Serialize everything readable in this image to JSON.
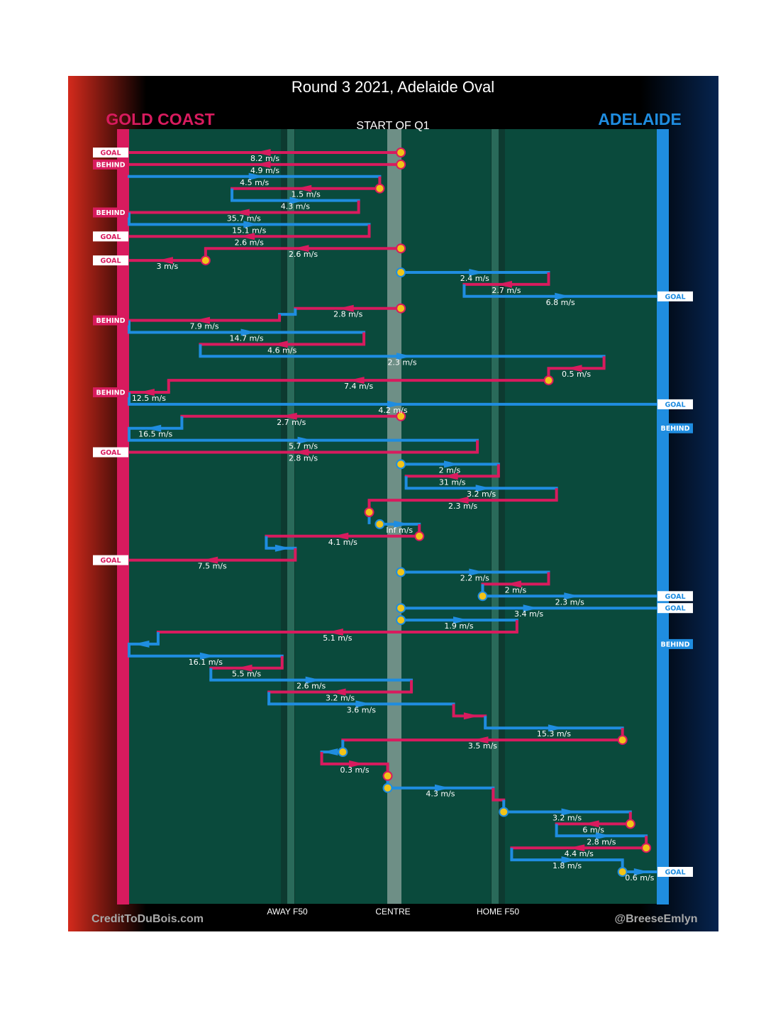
{
  "chart_data": {
    "type": "chain-flow",
    "title": "Round 3 2021, Adelaide Oval",
    "subtitle": "START OF Q1",
    "teams": {
      "left": {
        "name": "GOLD COAST",
        "color": "#d81b5e"
      },
      "right": {
        "name": "ADELAIDE",
        "color": "#1f8de0"
      }
    },
    "zone_labels": [
      "AWAY F50",
      "CENTRE",
      "HOME F50"
    ],
    "credits": {
      "left": "CreditToDuBois.com",
      "right": "@BreeseEmlyn"
    },
    "outcome_labels": {
      "goal": "GOAL",
      "behind": "BEHIND"
    },
    "field_units": "x = ground position (0 = Gold Coast goal line, 100 = Adelaide goal line, 50 = centre); row = chain segment order",
    "chains": [
      {
        "outcome": "goal",
        "segments": [
          {
            "team": "GC",
            "speed": "8.2 m/s",
            "row": 1,
            "x1": 51.5,
            "x2": 0,
            "end": "GOAL",
            "start_marker": true
          }
        ]
      },
      {
        "outcome": "behind",
        "segments": [
          {
            "team": "GC",
            "speed": "4.9 m/s",
            "row": 2,
            "x1": 51.5,
            "x2": 0,
            "end": "BEHIND",
            "start_marker": true
          }
        ]
      },
      {
        "outcome": "goal",
        "segments": [
          {
            "team": "ADL",
            "speed": "4.5 m/s",
            "row": 3,
            "x1": 0,
            "x2": 47.5
          },
          {
            "team": "GC",
            "speed": "1.5 m/s",
            "row": 4,
            "x1": 47.5,
            "x2": 19.5,
            "start_marker": true
          },
          {
            "team": "ADL",
            "speed": "4.3 m/s",
            "row": 5,
            "x1": 19.5,
            "x2": 43.5
          },
          {
            "team": "GC",
            "speed": "35.7 m/s",
            "row": 6,
            "x1": 43.5,
            "x2": 0,
            "end": "BEHIND"
          },
          {
            "team": "ADL",
            "speed": "15.1 m/s",
            "row": 7,
            "x1": 0,
            "x2": 45.5
          },
          {
            "team": "GC",
            "speed": "2.6 m/s",
            "row": 8,
            "x1": 45.5,
            "x2": 0,
            "end": "GOAL"
          }
        ]
      },
      {
        "outcome": "goal",
        "segments": [
          {
            "team": "GC",
            "speed": "2.6 m/s",
            "row": 9,
            "x1": 51.5,
            "x2": 14.5,
            "start_marker": true
          },
          {
            "team": "GC",
            "speed": "3 m/s",
            "row": 10,
            "x1": 14.5,
            "x2": 0,
            "end": "GOAL",
            "start_marker": true
          }
        ]
      },
      {
        "outcome": "goal",
        "segments": [
          {
            "team": "ADL",
            "speed": "2.4 m/s",
            "row": 11,
            "x1": 51.5,
            "x2": 79.5,
            "start_marker": true
          },
          {
            "team": "GC",
            "speed": "2.7 m/s",
            "row": 12,
            "x1": 79.5,
            "x2": 63.5
          },
          {
            "team": "ADL",
            "speed": "6.8 m/s",
            "row": 13,
            "x1": 63.5,
            "x2": 100,
            "end": "GOAL"
          }
        ]
      },
      {
        "outcome": "behind",
        "segments": [
          {
            "team": "GC",
            "speed": "2.8 m/s",
            "row": 14,
            "x1": 51.5,
            "x2": 31.5,
            "start_marker": true
          },
          {
            "team": "ADL",
            "speed": "",
            "row": 14.5,
            "x1": 31.5,
            "x2": 28.5
          },
          {
            "team": "GC",
            "speed": "7.9 m/s",
            "row": 15,
            "x1": 28.5,
            "x2": 0,
            "end": "BEHIND"
          },
          {
            "team": "ADL",
            "speed": "14.7 m/s",
            "row": 16,
            "x1": 0,
            "x2": 44.5
          },
          {
            "team": "GC",
            "speed": "4.6 m/s",
            "row": 17,
            "x1": 44.5,
            "x2": 13.5
          },
          {
            "team": "ADL",
            "speed": "2.3 m/s",
            "row": 18,
            "x1": 13.5,
            "x2": 90
          },
          {
            "team": "GC",
            "speed": "0.5 m/s",
            "row": 19,
            "x1": 90,
            "x2": 79.5
          },
          {
            "team": "GC",
            "speed": "7.4 m/s",
            "row": 20,
            "x1": 79.5,
            "x2": 7.5,
            "start_marker": true
          },
          {
            "team": "GC",
            "speed": "12.5 m/s",
            "row": 21,
            "x1": 7.5,
            "x2": 0,
            "end": "BEHIND"
          },
          {
            "team": "ADL",
            "speed": "4.2 m/s",
            "row": 22,
            "x1": 0,
            "x2": 100,
            "end": "GOAL"
          }
        ]
      },
      {
        "outcome": "goal",
        "segments": [
          {
            "team": "GC",
            "speed": "2.7 m/s",
            "row": 23,
            "x1": 51.5,
            "x2": 10,
            "start_marker": true
          },
          {
            "team": "ADL",
            "speed": "16.5 m/s",
            "row": 24,
            "x1": 10,
            "x2": 0,
            "end": "BEHIND"
          },
          {
            "team": "ADL",
            "speed": "5.7 m/s",
            "row": 25,
            "x1": 0,
            "x2": 66
          },
          {
            "team": "GC",
            "speed": "2.8 m/s",
            "row": 26,
            "x1": 66,
            "x2": 0,
            "end": "GOAL"
          }
        ]
      },
      {
        "outcome": "turnover",
        "segments": [
          {
            "team": "ADL",
            "speed": "2 m/s",
            "row": 27,
            "x1": 51.5,
            "x2": 70,
            "start_marker": true
          },
          {
            "team": "GC",
            "speed": "31 m/s",
            "row": 28,
            "x1": 70,
            "x2": 52.5
          },
          {
            "team": "ADL",
            "speed": "3.2 m/s",
            "row": 29,
            "x1": 52.5,
            "x2": 81
          },
          {
            "team": "GC",
            "speed": "2.3 m/s",
            "row": 30,
            "x1": 81,
            "x2": 45.5
          },
          {
            "team": "GC",
            "speed": "",
            "row": 31,
            "x1": 45.5,
            "x2": 45.5,
            "start_marker": true
          },
          {
            "team": "ADL",
            "speed": "Inf m/s",
            "row": 32,
            "x1": 47.5,
            "x2": 55,
            "start_marker": true
          },
          {
            "team": "GC",
            "speed": "4.1 m/s",
            "row": 33,
            "x1": 55,
            "x2": 26,
            "start_marker": true
          },
          {
            "team": "ADL",
            "speed": "",
            "row": 34,
            "x1": 26,
            "x2": 31.5
          },
          {
            "team": "GC",
            "speed": "7.5 m/s",
            "row": 35,
            "x1": 31.5,
            "x2": 0,
            "end": "GOAL"
          }
        ]
      },
      {
        "outcome": "goal",
        "segments": [
          {
            "team": "ADL",
            "speed": "2.2 m/s",
            "row": 36,
            "x1": 51.5,
            "x2": 79.5,
            "start_marker": true
          },
          {
            "team": "GC",
            "speed": "2 m/s",
            "row": 37,
            "x1": 79.5,
            "x2": 67,
            "start_marker": false
          },
          {
            "team": "ADL",
            "speed": "2.3 m/s",
            "row": 38,
            "x1": 67,
            "x2": 100,
            "end": "GOAL",
            "start_marker": true
          }
        ]
      },
      {
        "outcome": "goal",
        "segments": [
          {
            "team": "ADL",
            "speed": "3.4 m/s",
            "row": 39,
            "x1": 51.5,
            "x2": 100,
            "end": "GOAL",
            "start_marker": true
          }
        ]
      },
      {
        "outcome": "goal",
        "segments": [
          {
            "team": "ADL",
            "speed": "1.9 m/s",
            "row": 40,
            "x1": 51.5,
            "x2": 73.5,
            "start_marker": true
          },
          {
            "team": "GC",
            "speed": "5.1 m/s",
            "row": 41,
            "x1": 73.5,
            "x2": 5.5
          },
          {
            "team": "ADL",
            "speed": "",
            "row": 42,
            "x1": 5.5,
            "x2": 0,
            "end": "BEHIND"
          },
          {
            "team": "ADL",
            "speed": "16.1 m/s",
            "row": 43,
            "x1": 0,
            "x2": 29
          },
          {
            "team": "GC",
            "speed": "5.5 m/s",
            "row": 44,
            "x1": 29,
            "x2": 15.5
          },
          {
            "team": "ADL",
            "speed": "2.6 m/s",
            "row": 45,
            "x1": 15.5,
            "x2": 53.5
          },
          {
            "team": "GC",
            "speed": "3.2 m/s",
            "row": 46,
            "x1": 53.5,
            "x2": 26.5
          },
          {
            "team": "ADL",
            "speed": "3.6 m/s",
            "row": 47,
            "x1": 26.5,
            "x2": 61.5
          },
          {
            "team": "GC",
            "speed": "",
            "row": 48,
            "x1": 61.5,
            "x2": 67.5
          },
          {
            "team": "ADL",
            "speed": "15.3 m/s",
            "row": 49,
            "x1": 67.5,
            "x2": 93.5
          },
          {
            "team": "GC",
            "speed": "3.5 m/s",
            "row": 50,
            "x1": 93.5,
            "x2": 40.5,
            "start_marker": true
          },
          {
            "team": "ADL",
            "speed": "",
            "row": 51,
            "x1": 40.5,
            "x2": 36.5,
            "start_marker": true
          },
          {
            "team": "GC",
            "speed": "0.3 m/s",
            "row": 52,
            "x1": 36.5,
            "x2": 49
          },
          {
            "team": "GC",
            "speed": "",
            "row": 53,
            "x1": 49,
            "x2": 49,
            "start_marker": true
          },
          {
            "team": "ADL",
            "speed": "4.3 m/s",
            "row": 54,
            "x1": 49,
            "x2": 69,
            "start_marker": true
          },
          {
            "team": "GC",
            "speed": "",
            "row": 55,
            "x1": 69,
            "x2": 71
          },
          {
            "team": "ADL",
            "speed": "3.2 m/s",
            "row": 56,
            "x1": 71,
            "x2": 95,
            "start_marker": true
          },
          {
            "team": "GC",
            "speed": "6 m/s",
            "row": 57,
            "x1": 95,
            "x2": 81,
            "start_marker": true
          },
          {
            "team": "ADL",
            "speed": "2.8 m/s",
            "row": 58,
            "x1": 81,
            "x2": 98
          },
          {
            "team": "GC",
            "speed": "4.4 m/s",
            "row": 59,
            "x1": 98,
            "x2": 72.5,
            "start_marker": true
          },
          {
            "team": "ADL",
            "speed": "1.8 m/s",
            "row": 60,
            "x1": 72.5,
            "x2": 93.5
          },
          {
            "team": "ADL",
            "speed": "0.6 m/s",
            "row": 61,
            "x1": 93.5,
            "x2": 100,
            "end": "GOAL",
            "start_marker": true
          }
        ]
      }
    ]
  }
}
